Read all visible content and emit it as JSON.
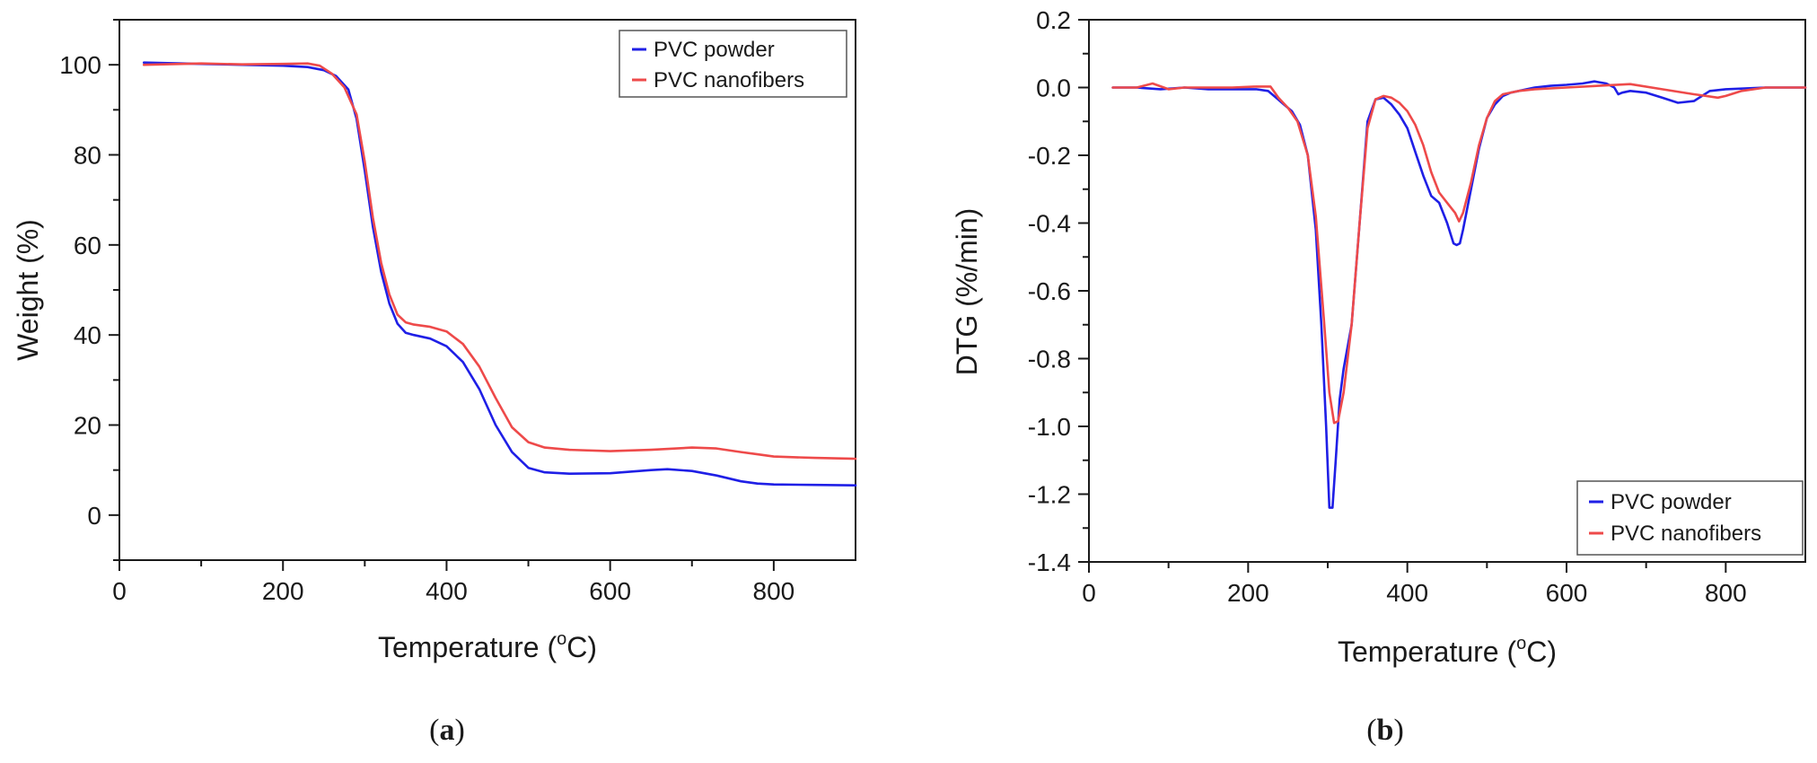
{
  "chart_data": [
    {
      "type": "line",
      "panel_label": "a",
      "title": "",
      "xlabel": "Temperature (oC)",
      "xlabel_main": "Temperature (",
      "xlabel_sup": "o",
      "xlabel_end": "C)",
      "ylabel": "Weight (%)",
      "xlim": [
        0,
        900
      ],
      "ylim": [
        -10,
        110
      ],
      "xticks": [
        0,
        200,
        400,
        600,
        800
      ],
      "yticks": [
        0,
        20,
        40,
        60,
        80,
        100
      ],
      "grid": false,
      "legend_position": "top-right",
      "series": [
        {
          "name": "PVC powder",
          "color": "#1f1fe6",
          "x": [
            30,
            100,
            150,
            200,
            230,
            250,
            265,
            280,
            290,
            300,
            310,
            320,
            330,
            340,
            350,
            360,
            380,
            400,
            420,
            440,
            460,
            480,
            500,
            520,
            550,
            600,
            650,
            670,
            700,
            730,
            760,
            780,
            800,
            850,
            900
          ],
          "y": [
            100.5,
            100.2,
            100.0,
            99.8,
            99.5,
            98.8,
            97.5,
            94.5,
            88.0,
            76.5,
            64.0,
            54.0,
            47.0,
            42.5,
            40.5,
            40.0,
            39.2,
            37.5,
            34.0,
            28.0,
            20.0,
            14.0,
            10.5,
            9.5,
            9.2,
            9.3,
            10.0,
            10.2,
            9.8,
            8.8,
            7.5,
            7.0,
            6.8,
            6.7,
            6.6
          ]
        },
        {
          "name": "PVC nanofibers",
          "color": "#ee4a4a",
          "x": [
            30,
            100,
            150,
            200,
            230,
            245,
            260,
            275,
            290,
            300,
            310,
            320,
            330,
            340,
            350,
            360,
            380,
            400,
            420,
            440,
            460,
            480,
            500,
            520,
            550,
            600,
            650,
            700,
            730,
            760,
            780,
            800,
            850,
            900
          ],
          "y": [
            100.0,
            100.3,
            100.1,
            100.2,
            100.3,
            99.8,
            98.0,
            95.0,
            89.0,
            78.5,
            66.0,
            56.0,
            49.0,
            44.5,
            42.8,
            42.3,
            41.8,
            40.8,
            38.0,
            33.0,
            26.0,
            19.5,
            16.2,
            15.0,
            14.5,
            14.2,
            14.5,
            15.0,
            14.8,
            14.0,
            13.5,
            13.0,
            12.7,
            12.5
          ]
        }
      ]
    },
    {
      "type": "line",
      "panel_label": "b",
      "title": "",
      "xlabel": "Temperature (oC)",
      "xlabel_main": "Temperature (",
      "xlabel_sup": "o",
      "xlabel_end": "C)",
      "ylabel": "DTG (%/min)",
      "xlim": [
        0,
        900
      ],
      "ylim": [
        -1.4,
        0.2
      ],
      "xticks": [
        0,
        200,
        400,
        600,
        800
      ],
      "yticks": [
        0.2,
        0.0,
        -0.2,
        -0.4,
        -0.6,
        -0.8,
        -1.0,
        -1.2,
        -1.4
      ],
      "ytick_labels": [
        "0.2",
        "0.0",
        "-0.2",
        "-0.4",
        "-0.6",
        "-0.8",
        "-1.0",
        "-1.2",
        "-1.4"
      ],
      "grid": false,
      "legend_position": "bottom-right",
      "series": [
        {
          "name": "PVC powder",
          "color": "#1f1fe6",
          "x": [
            30,
            60,
            90,
            120,
            150,
            180,
            210,
            225,
            235,
            245,
            255,
            265,
            275,
            285,
            292,
            298,
            302,
            306,
            310,
            315,
            320,
            330,
            340,
            350,
            360,
            370,
            380,
            390,
            400,
            410,
            420,
            430,
            440,
            450,
            458,
            462,
            466,
            470,
            480,
            490,
            500,
            510,
            520,
            530,
            540,
            560,
            580,
            600,
            620,
            635,
            650,
            660,
            665,
            670,
            680,
            700,
            720,
            740,
            760,
            780,
            800,
            850,
            900
          ],
          "y": [
            0.0,
            0.0,
            -0.005,
            0.0,
            -0.005,
            -0.005,
            -0.005,
            -0.01,
            -0.03,
            -0.05,
            -0.07,
            -0.11,
            -0.2,
            -0.42,
            -0.7,
            -1.0,
            -1.24,
            -1.24,
            -1.1,
            -0.92,
            -0.83,
            -0.7,
            -0.4,
            -0.1,
            -0.035,
            -0.03,
            -0.05,
            -0.08,
            -0.12,
            -0.19,
            -0.26,
            -0.32,
            -0.34,
            -0.4,
            -0.46,
            -0.465,
            -0.46,
            -0.42,
            -0.3,
            -0.18,
            -0.09,
            -0.05,
            -0.025,
            -0.015,
            -0.01,
            0.0,
            0.005,
            0.008,
            0.012,
            0.018,
            0.012,
            0.0,
            -0.02,
            -0.015,
            -0.01,
            -0.015,
            -0.03,
            -0.045,
            -0.04,
            -0.01,
            -0.005,
            0.0,
            0.0
          ]
        },
        {
          "name": "PVC nanofibers",
          "color": "#ee4a4a",
          "x": [
            30,
            60,
            80,
            100,
            120,
            150,
            180,
            210,
            228,
            238,
            250,
            262,
            275,
            285,
            295,
            302,
            308,
            313,
            320,
            330,
            340,
            350,
            360,
            370,
            380,
            390,
            400,
            410,
            420,
            430,
            440,
            450,
            460,
            465,
            470,
            480,
            490,
            500,
            510,
            520,
            540,
            560,
            600,
            640,
            680,
            720,
            760,
            790,
            800,
            820,
            850,
            900
          ],
          "y": [
            0.0,
            0.0,
            0.012,
            -0.005,
            0.0,
            0.0,
            0.0,
            0.003,
            0.003,
            -0.03,
            -0.06,
            -0.1,
            -0.2,
            -0.38,
            -0.68,
            -0.9,
            -0.99,
            -0.985,
            -0.9,
            -0.7,
            -0.4,
            -0.12,
            -0.035,
            -0.025,
            -0.03,
            -0.045,
            -0.07,
            -0.11,
            -0.17,
            -0.25,
            -0.31,
            -0.34,
            -0.37,
            -0.395,
            -0.37,
            -0.28,
            -0.17,
            -0.09,
            -0.04,
            -0.02,
            -0.01,
            -0.005,
            0.0,
            0.005,
            0.01,
            -0.005,
            -0.02,
            -0.03,
            -0.025,
            -0.01,
            0.0,
            0.0
          ]
        }
      ]
    }
  ]
}
